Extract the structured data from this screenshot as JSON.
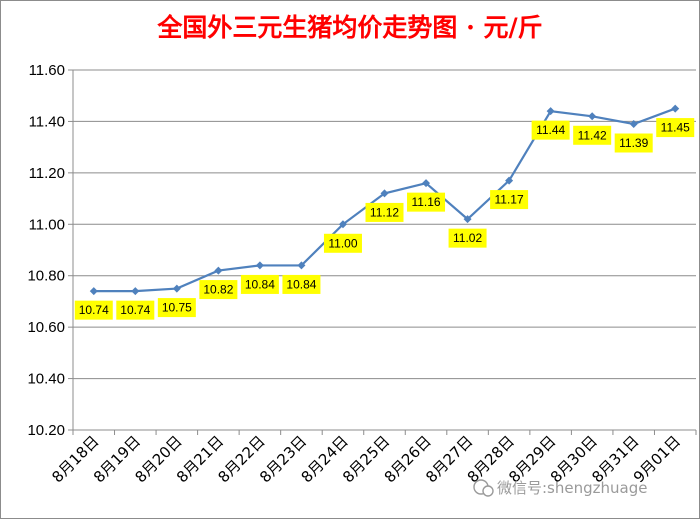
{
  "chart_data": {
    "type": "line",
    "title": "全国外三元生猪均价走势图 · 元/斤",
    "categories": [
      "8月18日",
      "8月19日",
      "8月20日",
      "8月21日",
      "8月22日",
      "8月23日",
      "8月24日",
      "8月25日",
      "8月26日",
      "8月27日",
      "8月28日",
      "8月29日",
      "8月30日",
      "8月31日",
      "9月01日"
    ],
    "series": [
      {
        "values": [
          10.74,
          10.74,
          10.75,
          10.82,
          10.84,
          10.84,
          11.0,
          11.12,
          11.16,
          11.02,
          11.17,
          11.44,
          11.42,
          11.39,
          11.45
        ],
        "data_labels": [
          "10.74",
          "10.74",
          "10.75",
          "10.82",
          "10.84",
          "10.84",
          "11.00",
          "11.12",
          "11.16",
          "11.02",
          "11.17",
          "11.44",
          "11.42",
          "11.39",
          "11.45"
        ]
      }
    ],
    "ylim": [
      10.2,
      11.6
    ],
    "yticks": [
      "10.20",
      "10.40",
      "10.60",
      "10.80",
      "11.00",
      "11.20",
      "11.40",
      "11.60"
    ],
    "ytick_values": [
      10.2,
      10.4,
      10.6,
      10.8,
      11.0,
      11.2,
      11.4,
      11.6
    ],
    "grid": true,
    "line_color": "#4f81bd",
    "label_bg_color": "#ffff00"
  },
  "watermark": {
    "text": "微信号:shengzhuage",
    "icon": "wechat-icon"
  }
}
